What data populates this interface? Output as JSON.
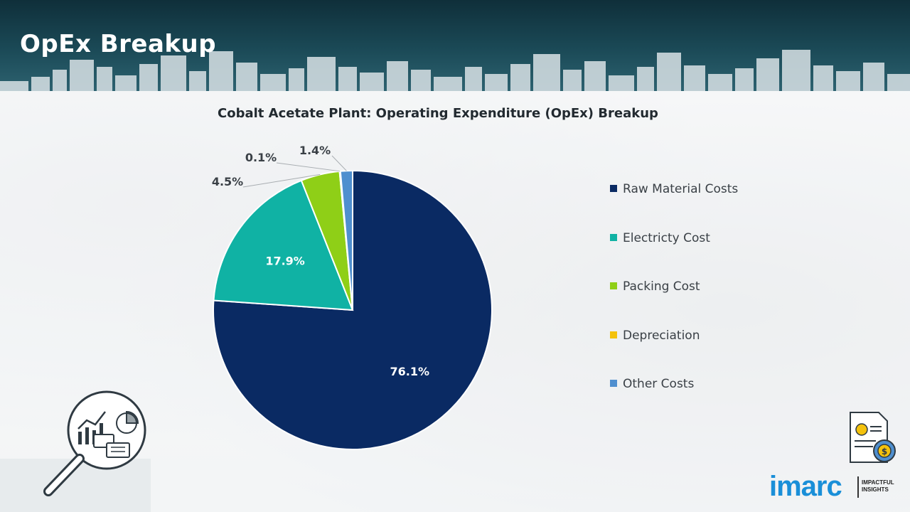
{
  "header": {
    "title": "OpEx Breakup"
  },
  "colors": {
    "raw_material": "#0a2a63",
    "electricity": "#10b2a4",
    "packing": "#8fcf17",
    "depreciation": "#f4c20d",
    "other": "#4f8fcf"
  },
  "chart_data": {
    "type": "pie",
    "title": "Cobalt Acetate Plant: Operating Expenditure (OpEx) Breakup",
    "categories": [
      "Raw Material Costs",
      "Electricty Cost",
      "Packing Cost",
      "Depreciation",
      "Other Costs"
    ],
    "values": [
      76.1,
      17.9,
      4.5,
      0.1,
      1.4
    ],
    "labels": [
      "76.1%",
      "17.9%",
      "4.5%",
      "0.1%",
      "1.4%"
    ],
    "legend_position": "right"
  },
  "logo": {
    "brand": "imarc",
    "tagline": "IMPACTFUL INSIGHTS"
  }
}
